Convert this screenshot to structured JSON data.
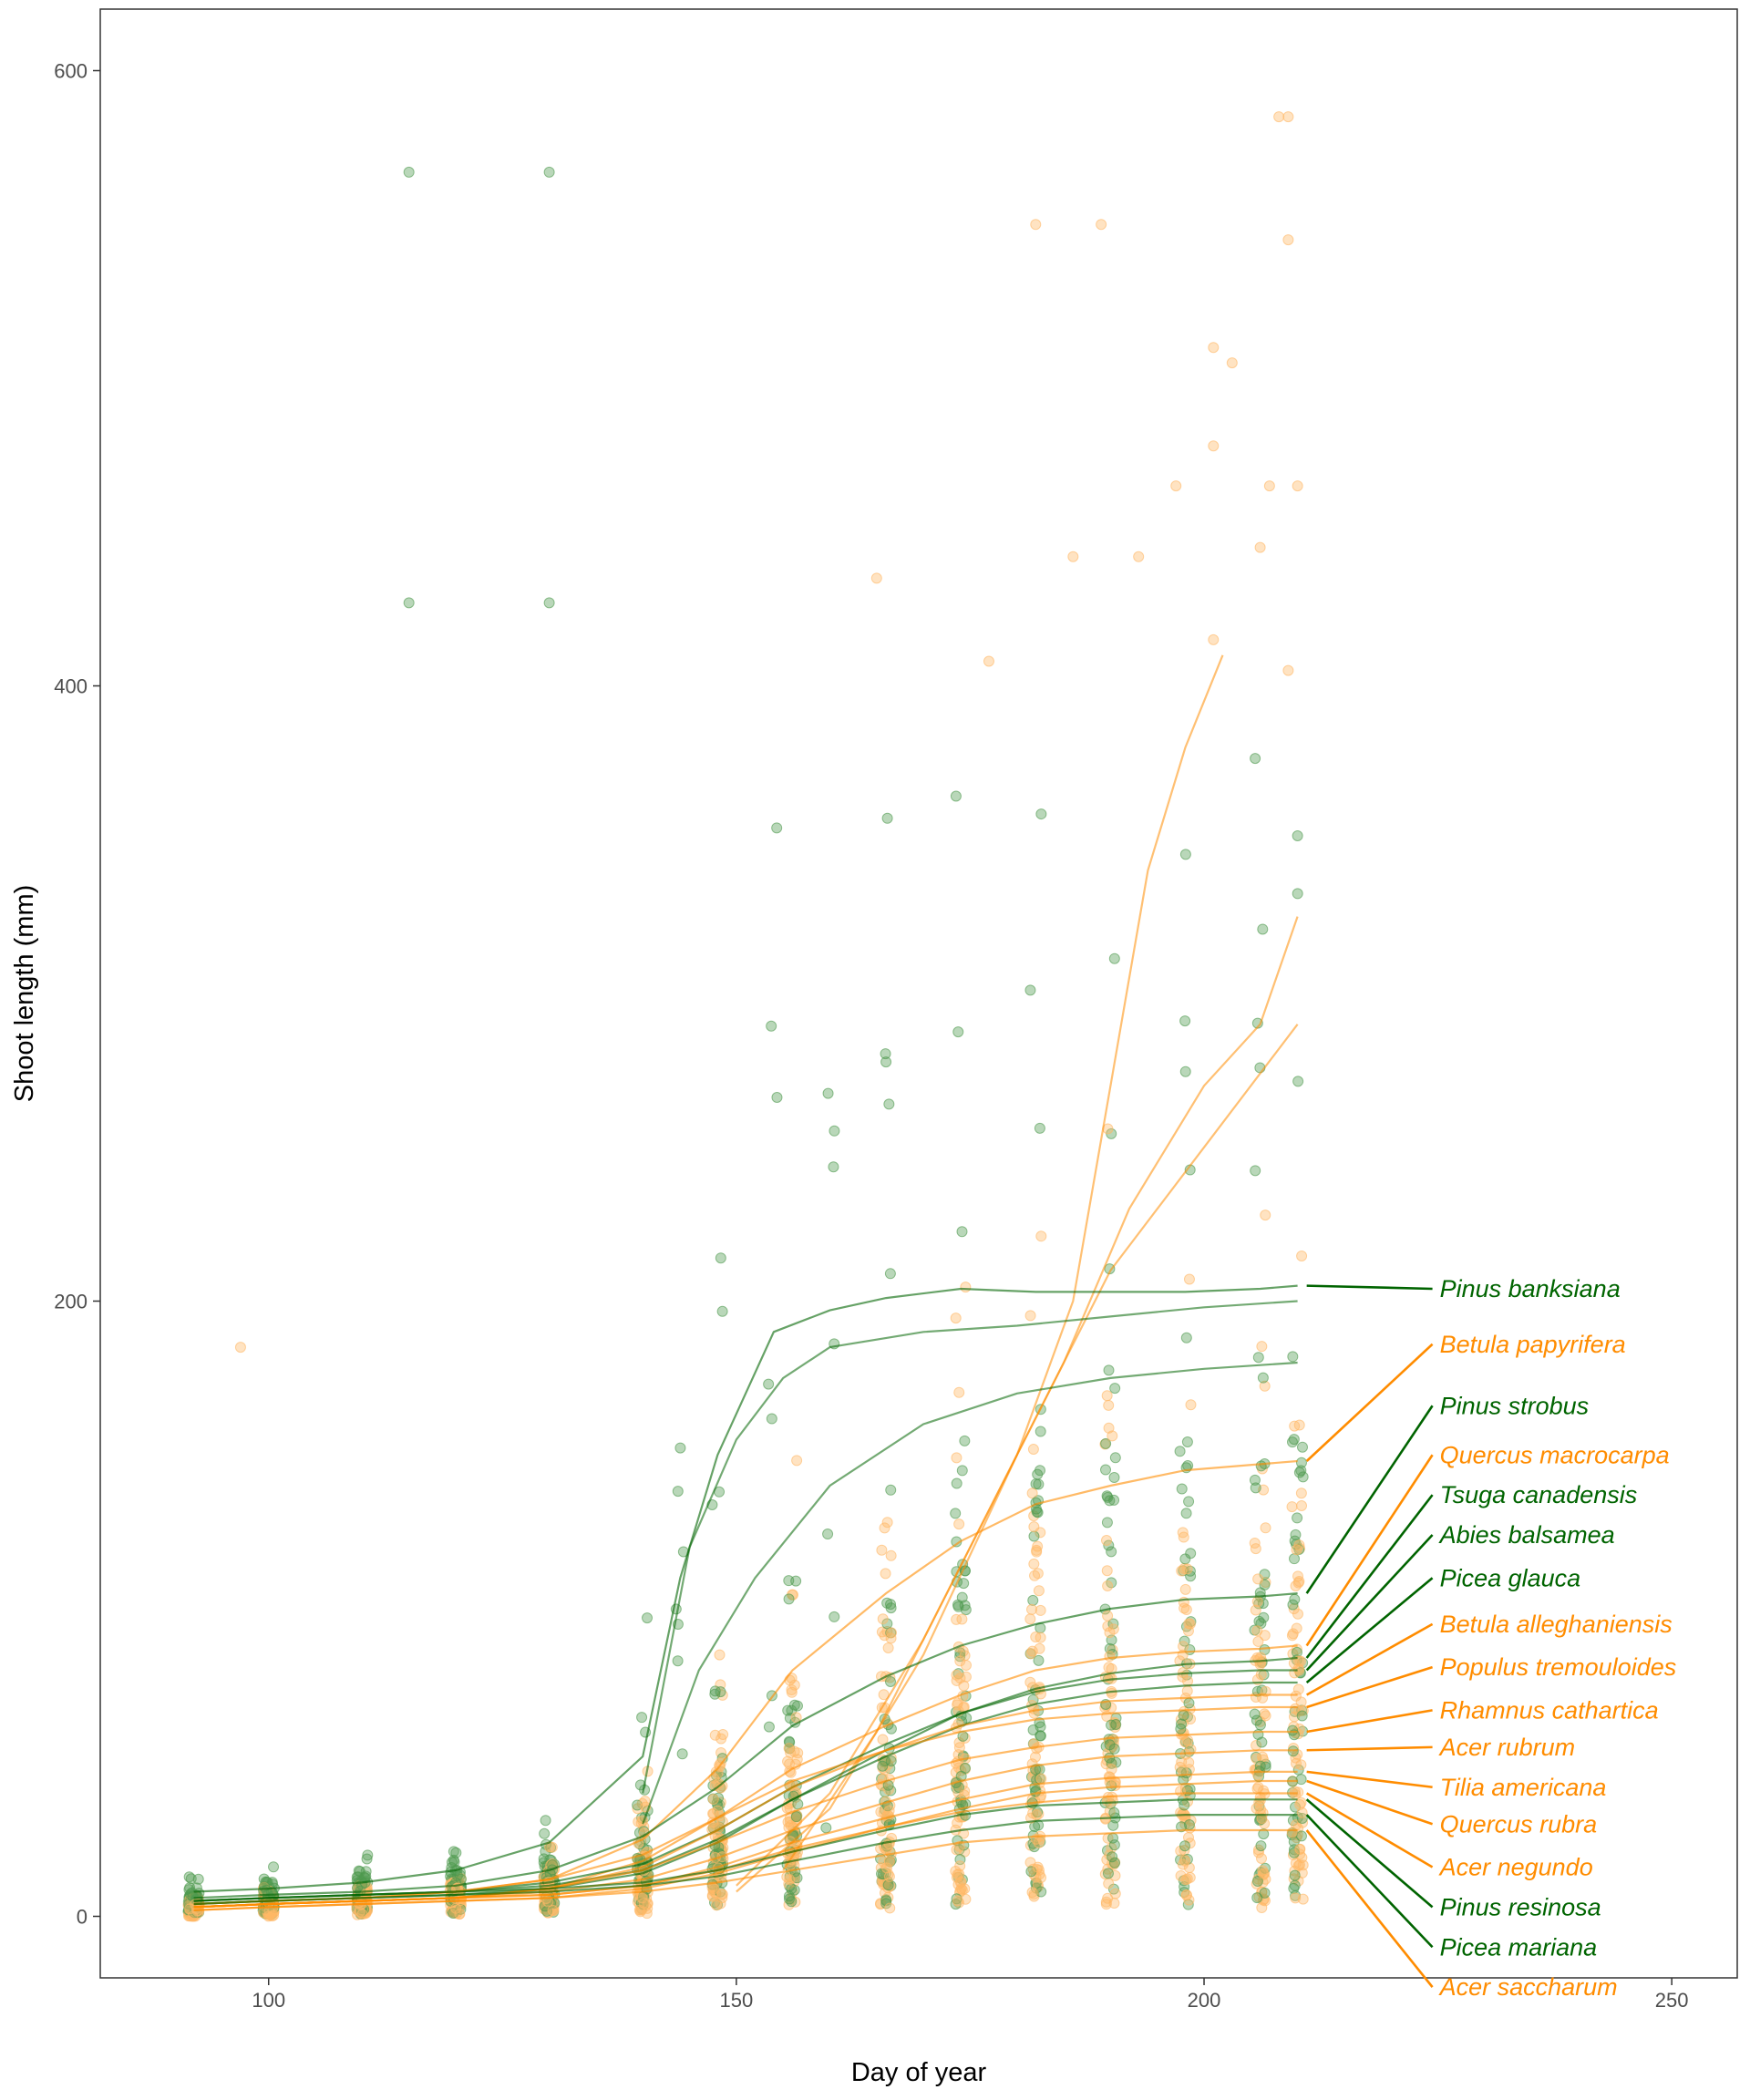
{
  "colors": {
    "evergreen": "#006400",
    "deciduous": "#ff8c00",
    "evergreen_point": "#4f9a4f",
    "deciduous_point": "#ffb866",
    "panel_border": "#333333",
    "tick_text": "#4d4d4d"
  },
  "chart_data": {
    "type": "scatter",
    "xlabel": "Day of year",
    "ylabel": "Shoot length (mm)",
    "xlim": [
      82,
      257
    ],
    "ylim": [
      -20,
      620
    ],
    "x_ticks": [
      100,
      150,
      200,
      250
    ],
    "y_ticks": [
      0,
      200,
      400,
      600
    ],
    "x_tick_labels": [
      "100",
      "150",
      "200",
      "250"
    ],
    "y_tick_labels": [
      "0",
      "200",
      "400",
      "600"
    ],
    "grid": false,
    "series": [
      {
        "name": "Pinus banksiana",
        "group": "evergreen",
        "label_y": 204,
        "end_y": 205,
        "x": [
          92,
          100,
          110,
          120,
          130,
          140,
          144,
          148,
          154,
          160,
          166,
          174,
          182,
          190,
          198,
          206,
          210
        ],
        "y": [
          8,
          9,
          11,
          15,
          24,
          52,
          110,
          150,
          190,
          197,
          201,
          204,
          203,
          203,
          203,
          204,
          205
        ]
      },
      {
        "name": "Betula papyrifera",
        "group": "deciduous",
        "label_y": 186,
        "end_y": 148,
        "x": [
          92,
          100,
          110,
          120,
          130,
          140,
          148,
          156,
          166,
          174,
          182,
          190,
          198,
          206,
          210
        ],
        "y": [
          4,
          5,
          6,
          8,
          12,
          25,
          48,
          80,
          105,
          122,
          134,
          140,
          145,
          147,
          148
        ]
      },
      {
        "name": "Pinus strobus",
        "group": "evergreen",
        "label_y": 166,
        "end_y": 105,
        "x": [
          92,
          100,
          110,
          120,
          130,
          140,
          148,
          156,
          166,
          174,
          182,
          190,
          198,
          206,
          210
        ],
        "y": [
          6,
          7,
          8,
          10,
          15,
          26,
          42,
          62,
          78,
          88,
          95,
          100,
          103,
          104,
          105
        ]
      },
      {
        "name": "Quercus macrocarpa",
        "group": "deciduous",
        "label_y": 150,
        "end_y": 88,
        "x": [
          92,
          100,
          110,
          120,
          130,
          140,
          148,
          156,
          166,
          174,
          182,
          190,
          198,
          206,
          210
        ],
        "y": [
          3,
          4,
          5,
          6,
          9,
          18,
          32,
          48,
          62,
          72,
          80,
          84,
          86,
          87,
          88
        ]
      },
      {
        "name": "Tsuga canadensis",
        "group": "evergreen",
        "label_y": 137,
        "end_y": 84,
        "x": [
          92,
          100,
          110,
          120,
          130,
          140,
          148,
          156,
          166,
          174,
          182,
          190,
          198,
          206,
          210
        ],
        "y": [
          4,
          5,
          6,
          7,
          9,
          14,
          24,
          38,
          54,
          66,
          74,
          79,
          82,
          83,
          84
        ]
      },
      {
        "name": "Abies balsamea",
        "group": "evergreen",
        "label_y": 124,
        "end_y": 80,
        "x": [
          92,
          100,
          110,
          120,
          130,
          140,
          148,
          156,
          166,
          174,
          182,
          190,
          198,
          206,
          210
        ],
        "y": [
          5,
          6,
          7,
          8,
          11,
          17,
          28,
          42,
          56,
          66,
          73,
          77,
          79,
          80,
          80
        ]
      },
      {
        "name": "Picea glauca",
        "group": "evergreen",
        "label_y": 110,
        "end_y": 76,
        "x": [
          92,
          100,
          110,
          120,
          130,
          140,
          148,
          156,
          166,
          174,
          182,
          190,
          198,
          206,
          210
        ],
        "y": [
          5,
          6,
          7,
          8,
          10,
          15,
          25,
          38,
          52,
          62,
          69,
          73,
          75,
          76,
          76
        ]
      },
      {
        "name": "Betula alleghaniensis",
        "group": "deciduous",
        "label_y": 95,
        "end_y": 72,
        "x": [
          92,
          100,
          110,
          120,
          130,
          140,
          148,
          156,
          166,
          174,
          182,
          190,
          198,
          206,
          210
        ],
        "y": [
          3,
          4,
          5,
          6,
          9,
          16,
          28,
          42,
          54,
          62,
          67,
          70,
          71,
          72,
          72
        ]
      },
      {
        "name": "Populus tremouloides",
        "group": "deciduous",
        "label_y": 81,
        "end_y": 68,
        "x": [
          92,
          100,
          110,
          120,
          130,
          140,
          148,
          156,
          166,
          174,
          182,
          190,
          198,
          206,
          210
        ],
        "y": [
          4,
          5,
          6,
          8,
          12,
          20,
          32,
          44,
          54,
          60,
          64,
          66,
          67,
          68,
          68
        ]
      },
      {
        "name": "Rhamnus cathartica",
        "group": "deciduous",
        "label_y": 67,
        "end_y": 60,
        "x": [
          92,
          100,
          110,
          120,
          130,
          140,
          148,
          156,
          166,
          174,
          182,
          190,
          198,
          206,
          210
        ],
        "y": [
          3,
          4,
          5,
          6,
          9,
          15,
          24,
          34,
          44,
          51,
          55,
          58,
          59,
          60,
          60
        ]
      },
      {
        "name": "Acer rubrum",
        "group": "deciduous",
        "label_y": 55,
        "end_y": 54,
        "x": [
          92,
          100,
          110,
          120,
          130,
          140,
          148,
          156,
          166,
          174,
          182,
          190,
          198,
          206,
          210
        ],
        "y": [
          3,
          4,
          5,
          6,
          8,
          12,
          19,
          28,
          37,
          44,
          49,
          52,
          53,
          54,
          54
        ]
      },
      {
        "name": "Tilia americana",
        "group": "deciduous",
        "label_y": 42,
        "end_y": 47,
        "x": [
          92,
          100,
          110,
          120,
          130,
          140,
          148,
          156,
          166,
          174,
          182,
          190,
          198,
          206,
          210
        ],
        "y": [
          3,
          4,
          5,
          6,
          7,
          10,
          16,
          24,
          32,
          38,
          43,
          45,
          46,
          47,
          47
        ]
      },
      {
        "name": "Quercus rubra",
        "group": "deciduous",
        "label_y": 30,
        "end_y": 44,
        "x": [
          92,
          100,
          110,
          120,
          130,
          140,
          148,
          156,
          166,
          174,
          182,
          190,
          198,
          206,
          210
        ],
        "y": [
          2,
          3,
          4,
          5,
          6,
          9,
          14,
          21,
          29,
          35,
          40,
          42,
          43,
          44,
          44
        ]
      },
      {
        "name": "Acer negundo",
        "group": "deciduous",
        "label_y": 16,
        "end_y": 40,
        "x": [
          92,
          100,
          110,
          120,
          130,
          140,
          148,
          156,
          166,
          174,
          182,
          190,
          198,
          206,
          210
        ],
        "y": [
          3,
          4,
          5,
          6,
          7,
          10,
          15,
          22,
          29,
          34,
          37,
          39,
          40,
          40,
          40
        ]
      },
      {
        "name": "Pinus resinosa",
        "group": "evergreen",
        "label_y": 3,
        "end_y": 38,
        "x": [
          92,
          100,
          110,
          120,
          130,
          140,
          148,
          156,
          166,
          174,
          182,
          190,
          198,
          206,
          210
        ],
        "y": [
          5,
          6,
          7,
          8,
          9,
          11,
          15,
          21,
          28,
          33,
          36,
          37,
          38,
          38,
          38
        ]
      },
      {
        "name": "Picea mariana",
        "group": "evergreen",
        "label_y": -10,
        "end_y": 33,
        "x": [
          92,
          100,
          110,
          120,
          130,
          140,
          148,
          156,
          166,
          174,
          182,
          190,
          198,
          206,
          210
        ],
        "y": [
          4,
          5,
          6,
          7,
          8,
          10,
          13,
          18,
          24,
          28,
          31,
          32,
          33,
          33,
          33
        ]
      },
      {
        "name": "Acer saccharum",
        "group": "deciduous",
        "label_y": -23,
        "end_y": 28,
        "x": [
          92,
          100,
          110,
          120,
          130,
          140,
          148,
          156,
          166,
          174,
          182,
          190,
          198,
          206,
          210
        ],
        "y": [
          2,
          3,
          4,
          5,
          6,
          8,
          11,
          15,
          20,
          24,
          26,
          27,
          28,
          28,
          28
        ]
      }
    ],
    "outlier_points": [
      {
        "x": 97,
        "y": 185,
        "group": "deciduous"
      },
      {
        "x": 115,
        "y": 567,
        "group": "evergreen"
      },
      {
        "x": 115,
        "y": 427,
        "group": "evergreen"
      },
      {
        "x": 130,
        "y": 567,
        "group": "evergreen"
      },
      {
        "x": 130,
        "y": 427,
        "group": "evergreen"
      },
      {
        "x": 165,
        "y": 435,
        "group": "deciduous"
      },
      {
        "x": 177,
        "y": 408,
        "group": "deciduous"
      },
      {
        "x": 182,
        "y": 550,
        "group": "deciduous"
      },
      {
        "x": 186,
        "y": 442,
        "group": "deciduous"
      },
      {
        "x": 189,
        "y": 550,
        "group": "deciduous"
      },
      {
        "x": 193,
        "y": 442,
        "group": "deciduous"
      },
      {
        "x": 197,
        "y": 465,
        "group": "deciduous"
      },
      {
        "x": 201,
        "y": 510,
        "group": "deciduous"
      },
      {
        "x": 203,
        "y": 505,
        "group": "deciduous"
      },
      {
        "x": 201,
        "y": 478,
        "group": "deciduous"
      },
      {
        "x": 206,
        "y": 445,
        "group": "deciduous"
      },
      {
        "x": 207,
        "y": 465,
        "group": "deciduous"
      },
      {
        "x": 208,
        "y": 585,
        "group": "deciduous"
      },
      {
        "x": 209,
        "y": 585,
        "group": "deciduous"
      },
      {
        "x": 209,
        "y": 545,
        "group": "deciduous"
      },
      {
        "x": 210,
        "y": 465,
        "group": "deciduous"
      },
      {
        "x": 201,
        "y": 415,
        "group": "deciduous"
      },
      {
        "x": 209,
        "y": 405,
        "group": "deciduous"
      }
    ],
    "extra_lines": [
      {
        "group": "deciduous",
        "x": [
          150,
          160,
          170,
          180,
          186,
          190,
          194,
          198,
          202
        ],
        "y": [
          10,
          40,
          90,
          150,
          200,
          270,
          340,
          380,
          410
        ]
      },
      {
        "group": "deciduous",
        "x": [
          155,
          165,
          175,
          185,
          192,
          200,
          206,
          210
        ],
        "y": [
          15,
          60,
          120,
          180,
          230,
          270,
          290,
          325
        ]
      },
      {
        "group": "deciduous",
        "x": [
          150,
          160,
          170,
          180,
          190,
          200,
          210
        ],
        "y": [
          8,
          35,
          85,
          150,
          210,
          250,
          290
        ]
      },
      {
        "group": "evergreen",
        "x": [
          140,
          145,
          150,
          155,
          160,
          170,
          180,
          190,
          200,
          210
        ],
        "y": [
          40,
          120,
          155,
          175,
          185,
          190,
          192,
          195,
          198,
          200
        ]
      },
      {
        "group": "evergreen",
        "x": [
          140,
          146,
          152,
          160,
          170,
          180,
          190,
          200,
          210
        ],
        "y": [
          30,
          80,
          110,
          140,
          160,
          170,
          175,
          178,
          180
        ]
      }
    ]
  }
}
